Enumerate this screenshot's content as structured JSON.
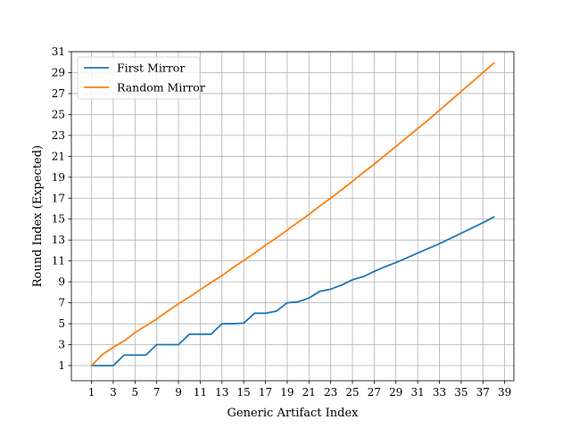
{
  "chart_data": {
    "type": "line",
    "title": "",
    "xlabel": "Generic Artifact Index",
    "ylabel": "Round Index (Expected)",
    "xlim": [
      -0.85,
      39.85
    ],
    "ylim": [
      -0.45,
      31.0
    ],
    "xticks": [
      1,
      3,
      5,
      7,
      9,
      11,
      13,
      15,
      17,
      19,
      21,
      23,
      25,
      27,
      29,
      31,
      33,
      35,
      37,
      39
    ],
    "yticks": [
      1,
      3,
      5,
      7,
      9,
      11,
      13,
      15,
      17,
      19,
      21,
      23,
      25,
      27,
      29,
      31
    ],
    "grid": true,
    "legend_position": "top-left",
    "x": [
      1,
      2,
      3,
      4,
      5,
      6,
      7,
      8,
      9,
      10,
      11,
      12,
      13,
      14,
      15,
      16,
      17,
      18,
      19,
      20,
      21,
      22,
      23,
      24,
      25,
      26,
      27,
      28,
      29,
      30,
      31,
      32,
      33,
      34,
      35,
      36,
      37,
      38
    ],
    "series": [
      {
        "name": "First Mirror",
        "color": "#1f77b4",
        "values": [
          1.0,
          1.0,
          1.0,
          2.0,
          2.0,
          2.0,
          3.0,
          3.0,
          3.0,
          4.0,
          4.0,
          4.0,
          5.0,
          5.0,
          5.05,
          6.0,
          6.0,
          6.2,
          7.0,
          7.1,
          7.45,
          8.1,
          8.3,
          8.7,
          9.2,
          9.5,
          10.0,
          10.45,
          10.85,
          11.3,
          11.75,
          12.2,
          12.65,
          13.15,
          13.65,
          14.15,
          14.65,
          15.2
        ]
      },
      {
        "name": "Random Mirror",
        "color": "#ff7f0e",
        "values": [
          1.0,
          2.05,
          2.75,
          3.35,
          4.15,
          4.8,
          5.45,
          6.2,
          6.9,
          7.55,
          8.25,
          8.95,
          9.6,
          10.35,
          11.05,
          11.75,
          12.5,
          13.2,
          13.95,
          14.7,
          15.45,
          16.25,
          17.0,
          17.8,
          18.6,
          19.45,
          20.25,
          21.1,
          21.95,
          22.8,
          23.65,
          24.5,
          25.4,
          26.3,
          27.2,
          28.1,
          29.0,
          29.9
        ]
      }
    ]
  }
}
